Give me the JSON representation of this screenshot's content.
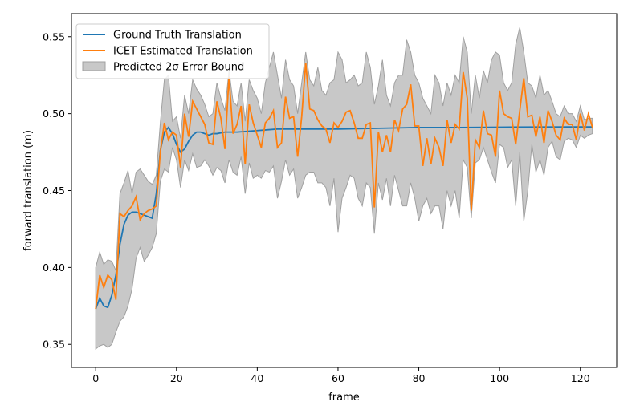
{
  "chart_data": {
    "type": "line",
    "title": "",
    "xlabel": "frame",
    "ylabel": "forward translation (m)",
    "xlim": [
      -6,
      129
    ],
    "ylim": [
      0.335,
      0.565
    ],
    "xticks": [
      0,
      20,
      40,
      60,
      80,
      100,
      120
    ],
    "yticks": [
      0.35,
      0.4,
      0.45,
      0.5,
      0.55
    ],
    "ytick_labels": [
      "0.35",
      "0.40",
      "0.45",
      "0.50",
      "0.55"
    ],
    "grid": false,
    "legend_position": "top-left",
    "colors": {
      "ground_truth": "#1f77b4",
      "icet": "#ff7f0e",
      "band": "#c8c8c8",
      "band_edge": "#a0a0a0"
    },
    "legend": [
      "Ground Truth Translation",
      "ICET Estimated Translation",
      "Predicted 2σ Error Bound"
    ],
    "series": [
      {
        "name": "Ground Truth Translation",
        "x": [
          0,
          1,
          2,
          3,
          4,
          5,
          6,
          7,
          8,
          9,
          10,
          11,
          12,
          13,
          14,
          15,
          16,
          17,
          18,
          19,
          20,
          21,
          22,
          23,
          24,
          25,
          26,
          27,
          28,
          29,
          30,
          32,
          35,
          40,
          45,
          50,
          55,
          60,
          70,
          80,
          90,
          100,
          110,
          120,
          123
        ],
        "y": [
          0.373,
          0.38,
          0.375,
          0.374,
          0.382,
          0.395,
          0.415,
          0.428,
          0.434,
          0.436,
          0.436,
          0.435,
          0.434,
          0.433,
          0.432,
          0.448,
          0.476,
          0.488,
          0.491,
          0.487,
          0.48,
          0.475,
          0.477,
          0.482,
          0.486,
          0.488,
          0.488,
          0.487,
          0.486,
          0.487,
          0.487,
          0.488,
          0.488,
          0.489,
          0.49,
          0.49,
          0.49,
          0.49,
          0.4905,
          0.491,
          0.491,
          0.4912,
          0.4913,
          0.4914,
          0.4914
        ]
      },
      {
        "name": "ICET Estimated Translation",
        "x": [
          0,
          1,
          2,
          3,
          4,
          5,
          6,
          7,
          8,
          9,
          10,
          11,
          12,
          13,
          14,
          15,
          16,
          17,
          18,
          19,
          20,
          21,
          22,
          23,
          24,
          25,
          26,
          27,
          28,
          29,
          30,
          31,
          32,
          33,
          34,
          35,
          36,
          37,
          38,
          39,
          40,
          41,
          42,
          43,
          44,
          45,
          46,
          47,
          48,
          49,
          50,
          51,
          52,
          53,
          54,
          55,
          56,
          57,
          58,
          59,
          60,
          61,
          62,
          63,
          64,
          65,
          66,
          67,
          68,
          69,
          70,
          71,
          72,
          73,
          74,
          75,
          76,
          77,
          78,
          79,
          80,
          81,
          82,
          83,
          84,
          85,
          86,
          87,
          88,
          89,
          90,
          91,
          92,
          93,
          94,
          95,
          96,
          97,
          98,
          99,
          100,
          101,
          102,
          103,
          104,
          105,
          106,
          107,
          108,
          109,
          110,
          111,
          112,
          113,
          114,
          115,
          116,
          117,
          118,
          119,
          120,
          121,
          122,
          123
        ],
        "y": [
          0.373,
          0.395,
          0.387,
          0.395,
          0.392,
          0.379,
          0.435,
          0.433,
          0.437,
          0.44,
          0.446,
          0.431,
          0.435,
          0.437,
          0.438,
          0.44,
          0.475,
          0.494,
          0.483,
          0.488,
          0.486,
          0.465,
          0.5,
          0.485,
          0.508,
          0.503,
          0.498,
          0.493,
          0.481,
          0.48,
          0.508,
          0.497,
          0.477,
          0.524,
          0.487,
          0.493,
          0.505,
          0.467,
          0.506,
          0.494,
          0.486,
          0.478,
          0.494,
          0.497,
          0.502,
          0.478,
          0.481,
          0.511,
          0.497,
          0.498,
          0.472,
          0.498,
          0.533,
          0.503,
          0.502,
          0.496,
          0.492,
          0.49,
          0.481,
          0.494,
          0.491,
          0.495,
          0.501,
          0.502,
          0.494,
          0.484,
          0.484,
          0.493,
          0.494,
          0.439,
          0.488,
          0.475,
          0.486,
          0.475,
          0.496,
          0.489,
          0.503,
          0.506,
          0.519,
          0.492,
          0.492,
          0.466,
          0.484,
          0.467,
          0.484,
          0.478,
          0.466,
          0.496,
          0.481,
          0.493,
          0.49,
          0.527,
          0.51,
          0.437,
          0.483,
          0.478,
          0.502,
          0.487,
          0.486,
          0.472,
          0.515,
          0.5,
          0.498,
          0.497,
          0.48,
          0.502,
          0.523,
          0.498,
          0.499,
          0.485,
          0.498,
          0.481,
          0.502,
          0.495,
          0.486,
          0.483,
          0.497,
          0.493,
          0.493,
          0.483,
          0.5,
          0.489,
          0.5,
          0.491
        ]
      }
    ],
    "band": {
      "name": "Predicted 2σ Error Bound",
      "x": [
        0,
        1,
        2,
        3,
        4,
        5,
        6,
        7,
        8,
        9,
        10,
        11,
        12,
        13,
        14,
        15,
        16,
        17,
        18,
        19,
        20,
        21,
        22,
        23,
        24,
        25,
        26,
        27,
        28,
        29,
        30,
        31,
        32,
        33,
        34,
        35,
        36,
        37,
        38,
        39,
        40,
        41,
        42,
        43,
        44,
        45,
        46,
        47,
        48,
        49,
        50,
        51,
        52,
        53,
        54,
        55,
        56,
        57,
        58,
        59,
        60,
        61,
        62,
        63,
        64,
        65,
        66,
        67,
        68,
        69,
        70,
        71,
        72,
        73,
        74,
        75,
        76,
        77,
        78,
        79,
        80,
        81,
        82,
        83,
        84,
        85,
        86,
        87,
        88,
        89,
        90,
        91,
        92,
        93,
        94,
        95,
        96,
        97,
        98,
        99,
        100,
        101,
        102,
        103,
        104,
        105,
        106,
        107,
        108,
        109,
        110,
        111,
        112,
        113,
        114,
        115,
        116,
        117,
        118,
        119,
        120,
        121,
        122,
        123
      ],
      "upper": [
        0.4,
        0.41,
        0.402,
        0.405,
        0.404,
        0.398,
        0.448,
        0.455,
        0.463,
        0.448,
        0.462,
        0.464,
        0.46,
        0.456,
        0.454,
        0.46,
        0.494,
        0.522,
        0.525,
        0.495,
        0.498,
        0.484,
        0.512,
        0.5,
        0.522,
        0.516,
        0.512,
        0.506,
        0.498,
        0.5,
        0.52,
        0.51,
        0.502,
        0.528,
        0.508,
        0.505,
        0.52,
        0.495,
        0.522,
        0.515,
        0.51,
        0.5,
        0.52,
        0.53,
        0.54,
        0.525,
        0.51,
        0.535,
        0.522,
        0.518,
        0.5,
        0.52,
        0.54,
        0.522,
        0.518,
        0.53,
        0.515,
        0.512,
        0.52,
        0.522,
        0.54,
        0.535,
        0.52,
        0.522,
        0.525,
        0.518,
        0.52,
        0.54,
        0.53,
        0.506,
        0.518,
        0.535,
        0.512,
        0.505,
        0.52,
        0.525,
        0.525,
        0.548,
        0.54,
        0.525,
        0.52,
        0.51,
        0.505,
        0.5,
        0.525,
        0.52,
        0.505,
        0.52,
        0.512,
        0.525,
        0.52,
        0.55,
        0.54,
        0.5,
        0.525,
        0.51,
        0.528,
        0.52,
        0.535,
        0.54,
        0.538,
        0.52,
        0.515,
        0.52,
        0.545,
        0.556,
        0.54,
        0.52,
        0.518,
        0.51,
        0.525,
        0.512,
        0.515,
        0.508,
        0.5,
        0.498,
        0.505,
        0.5,
        0.5,
        0.495,
        0.505,
        0.496,
        0.497,
        0.497
      ],
      "lower": [
        0.347,
        0.349,
        0.35,
        0.348,
        0.35,
        0.358,
        0.365,
        0.368,
        0.375,
        0.386,
        0.406,
        0.413,
        0.404,
        0.408,
        0.413,
        0.422,
        0.456,
        0.464,
        0.462,
        0.478,
        0.47,
        0.452,
        0.47,
        0.463,
        0.474,
        0.465,
        0.466,
        0.47,
        0.466,
        0.46,
        0.465,
        0.463,
        0.455,
        0.47,
        0.462,
        0.46,
        0.472,
        0.448,
        0.468,
        0.458,
        0.46,
        0.458,
        0.463,
        0.462,
        0.466,
        0.445,
        0.456,
        0.47,
        0.46,
        0.464,
        0.445,
        0.452,
        0.46,
        0.462,
        0.462,
        0.455,
        0.455,
        0.452,
        0.44,
        0.458,
        0.423,
        0.445,
        0.452,
        0.46,
        0.458,
        0.445,
        0.44,
        0.455,
        0.452,
        0.422,
        0.455,
        0.444,
        0.458,
        0.44,
        0.46,
        0.45,
        0.44,
        0.44,
        0.455,
        0.445,
        0.43,
        0.44,
        0.445,
        0.435,
        0.44,
        0.44,
        0.425,
        0.45,
        0.44,
        0.45,
        0.432,
        0.47,
        0.465,
        0.432,
        0.468,
        0.47,
        0.478,
        0.47,
        0.462,
        0.455,
        0.48,
        0.478,
        0.465,
        0.47,
        0.44,
        0.475,
        0.43,
        0.45,
        0.48,
        0.462,
        0.47,
        0.46,
        0.478,
        0.482,
        0.472,
        0.47,
        0.482,
        0.484,
        0.483,
        0.478,
        0.486,
        0.484,
        0.486,
        0.487
      ]
    }
  }
}
